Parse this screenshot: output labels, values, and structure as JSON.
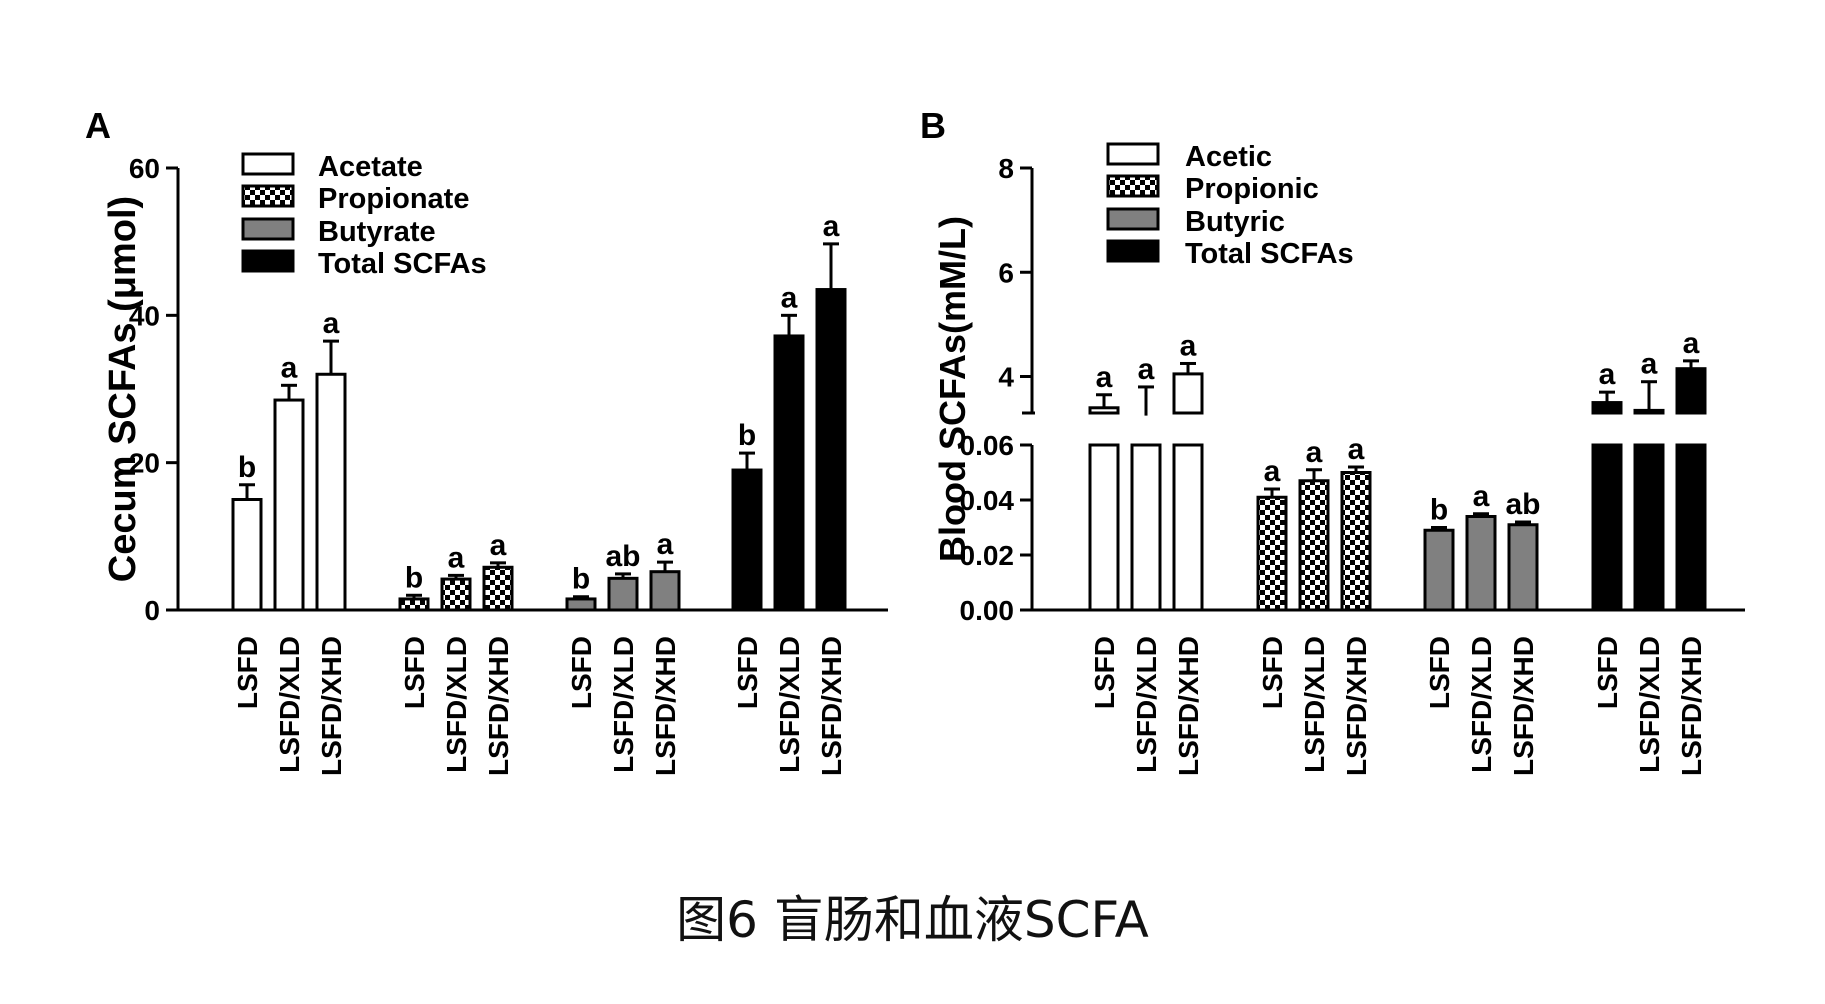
{
  "caption": "图6 盲肠和血液SCFA",
  "colors": {
    "acetate": "#ffffff",
    "propionate": "checker",
    "butyrate": "#808080",
    "total": "#000000",
    "stroke": "#000000"
  },
  "chart_data": [
    {
      "panel": "A",
      "type": "bar",
      "ylabel": "Cecum SCFAs (μmol)",
      "ylim": [
        0,
        60
      ],
      "yticks": [
        "0",
        "20",
        "40",
        "60"
      ],
      "legend": [
        "Acetate",
        "Propionate",
        "Butyrate",
        "Total SCFAs"
      ],
      "categories": [
        "LSFD",
        "LSFD/XLD",
        "LSFD/XHD"
      ],
      "series": [
        {
          "name": "Acetate",
          "fill": "white",
          "values": [
            15,
            28.5,
            32
          ],
          "errors": [
            2,
            2,
            4.5
          ],
          "letters": [
            "b",
            "a",
            "a"
          ]
        },
        {
          "name": "Propionate",
          "fill": "checker",
          "values": [
            1.5,
            4.2,
            5.8
          ],
          "errors": [
            0.5,
            0.5,
            0.6
          ],
          "letters": [
            "b",
            "a",
            "a"
          ]
        },
        {
          "name": "Butyrate",
          "fill": "gray",
          "values": [
            1.5,
            4.3,
            5.2
          ],
          "errors": [
            0.3,
            0.6,
            1.3
          ],
          "letters": [
            "b",
            "ab",
            "a"
          ]
        },
        {
          "name": "Total SCFAs",
          "fill": "black",
          "values": [
            19,
            37.2,
            43.5
          ],
          "errors": [
            2.3,
            2.8,
            6.2
          ],
          "letters": [
            "b",
            "a",
            "a"
          ]
        }
      ]
    },
    {
      "panel": "B",
      "type": "bar",
      "ylabel": "Blood SCFAs(mM/L)",
      "broken_axis": true,
      "ylim_lower": [
        0,
        0.06
      ],
      "yticks_lower": [
        "0.00",
        "0.02",
        "0.04",
        "0.06"
      ],
      "ylim_upper": [
        3.3,
        8
      ],
      "yticks_upper": [
        "4",
        "6",
        "8"
      ],
      "legend": [
        "Acetic",
        "Propionic",
        "Butyric",
        "Total SCFAs"
      ],
      "categories": [
        "LSFD",
        "LSFD/XLD",
        "LSFD/XHD"
      ],
      "series": [
        {
          "name": "Acetic",
          "fill": "white",
          "values": [
            3.4,
            3.25,
            4.05
          ],
          "errors": [
            0.25,
            0.55,
            0.2
          ],
          "letters": [
            "a",
            "a",
            "a"
          ]
        },
        {
          "name": "Propionic",
          "fill": "checker",
          "values": [
            0.041,
            0.047,
            0.05
          ],
          "errors": [
            0.003,
            0.004,
            0.002
          ],
          "letters": [
            "a",
            "a",
            "a"
          ]
        },
        {
          "name": "Butyric",
          "fill": "gray",
          "values": [
            0.029,
            0.034,
            0.031
          ],
          "errors": [
            0.001,
            0.001,
            0.001
          ],
          "letters": [
            "b",
            "a",
            "ab"
          ]
        },
        {
          "name": "Total SCFAs",
          "fill": "black",
          "values": [
            3.5,
            3.35,
            4.15
          ],
          "errors": [
            0.2,
            0.55,
            0.15
          ],
          "letters": [
            "a",
            "a",
            "a"
          ]
        }
      ]
    }
  ]
}
